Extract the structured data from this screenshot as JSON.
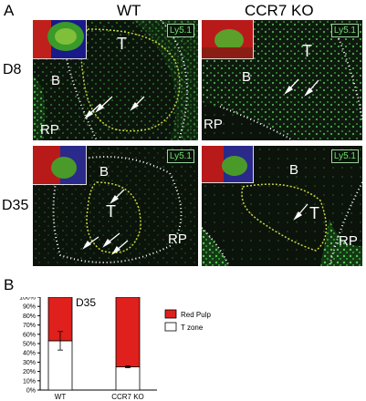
{
  "figure": {
    "panel_a_label": "A",
    "panel_b_label": "B",
    "col_wt": "WT",
    "col_ko": "CCR7 KO",
    "row_d8": "D8",
    "row_d35": "D35",
    "marker": "Ly5.1",
    "zones": {
      "t": "T",
      "b": "B",
      "rp": "RP"
    }
  },
  "colors": {
    "marker_green": "#6ee06e",
    "red_pulp": "#e0201c",
    "t_zone": "#ffffff",
    "dotted_yellow": "#c8d63a"
  },
  "chart_data": {
    "type": "bar",
    "stacked": true,
    "title": "D35",
    "categories": [
      "WT",
      "CCR7 KO"
    ],
    "series": [
      {
        "name": "T zone",
        "values": [
          53,
          25
        ],
        "color": "#ffffff"
      },
      {
        "name": "Red Pulp",
        "values": [
          47,
          75
        ],
        "color": "#e0201c"
      }
    ],
    "error_bars": [
      10,
      1
    ],
    "ylim": [
      0,
      100
    ],
    "yticks": [
      "0%",
      "10%",
      "20%",
      "30%",
      "40%",
      "50%",
      "60%",
      "70%",
      "80%",
      "90%",
      "100%"
    ],
    "legend": [
      {
        "label": "Red Pulp"
      },
      {
        "label": "T zone"
      }
    ],
    "legend_position": "right"
  }
}
